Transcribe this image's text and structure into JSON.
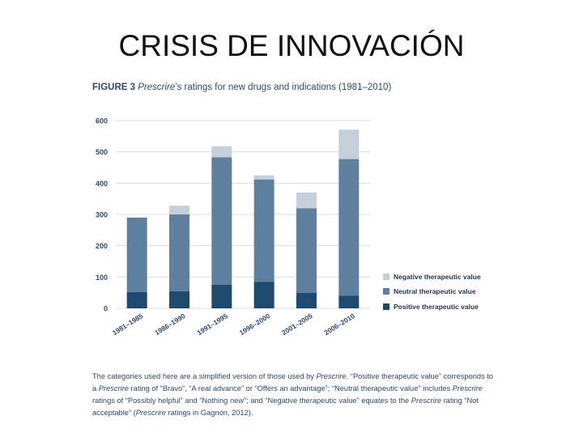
{
  "slide": {
    "title": "CRISIS DE INNOVACIÓN"
  },
  "figure": {
    "label": "FIGURE 3",
    "title_italic": "Prescrire",
    "title_rest": "’s ratings for new drugs and indications (1981–2010)"
  },
  "caption": {
    "s1": "The categories used here are a simplified version of those used by ",
    "s2": "Prescrire",
    "s3": ". “Positive therapeutic value” corresponds to a ",
    "s4": "Prescrire",
    "s5": " rating of “Bravo”, “A real advance” or “Offers an advantage”; “Neutral therapeutic value” includes ",
    "s6": "Prescrire",
    "s7": " ratings of “Possibly helpful” and “Nothing new”; and “Negative therapeutic value” equates to the ",
    "s8": "Prescrire",
    "s9": " rating “Not acceptable” (",
    "s10": "Prescrire",
    "s11": " ratings in Gagnon, 2012)."
  },
  "chart_data": {
    "type": "bar",
    "stacked": true,
    "categories": [
      "1981–1985",
      "1986–1990",
      "1991–1995",
      "1996–2000",
      "2001–2005",
      "2006–2010"
    ],
    "series": [
      {
        "name": "Positive therapeutic value",
        "values": [
          52,
          55,
          75,
          85,
          50,
          40
        ],
        "color": "#1d4a6e"
      },
      {
        "name": "Neutral therapeutic value",
        "values": [
          238,
          245,
          408,
          327,
          270,
          437
        ],
        "color": "#5f7f9e"
      },
      {
        "name": "Negative therapeutic value",
        "values": [
          0,
          28,
          35,
          13,
          50,
          94
        ],
        "color": "#c5cfd9"
      }
    ],
    "yticks": [
      0,
      100,
      200,
      300,
      400,
      500,
      600
    ],
    "ylim": [
      0,
      600
    ],
    "grid": true,
    "legend": "right",
    "legend_order": [
      "Negative therapeutic value",
      "Neutral therapeutic value",
      "Positive therapeutic value"
    ]
  }
}
